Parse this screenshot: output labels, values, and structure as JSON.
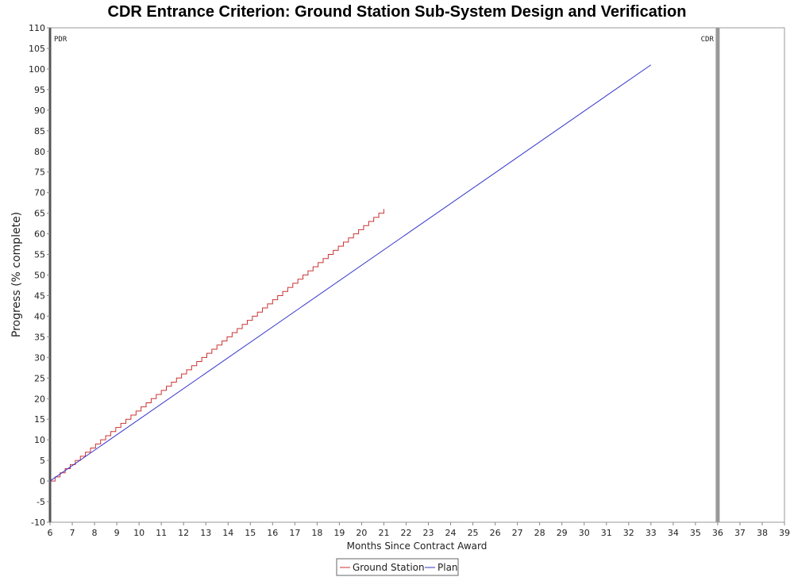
{
  "chart_data": {
    "type": "line",
    "title": "CDR Entrance Criterion: Ground Station Sub-System Design and Verification",
    "xlabel": "Months Since Contract Award",
    "ylabel": "Progress (% complete)",
    "xlim": [
      6,
      39
    ],
    "ylim": [
      -10,
      110
    ],
    "x_ticks": [
      6,
      7,
      8,
      9,
      10,
      11,
      12,
      13,
      14,
      15,
      16,
      17,
      18,
      19,
      20,
      21,
      22,
      23,
      24,
      25,
      26,
      27,
      28,
      29,
      30,
      31,
      32,
      33,
      34,
      35,
      36,
      37,
      38,
      39
    ],
    "y_ticks": [
      -10,
      -5,
      0,
      5,
      10,
      15,
      20,
      25,
      30,
      35,
      40,
      45,
      50,
      55,
      60,
      65,
      70,
      75,
      80,
      85,
      90,
      95,
      100,
      105,
      110
    ],
    "grid": false,
    "legend_position": "bottom-center",
    "markers": [
      {
        "label": "PDR",
        "x": 6,
        "color": "#555555"
      },
      {
        "label": "CDR",
        "x": 36,
        "color": "#999999"
      }
    ],
    "series": [
      {
        "name": "Ground Station",
        "color": "#cc3333",
        "style": "step",
        "x": [
          6,
          21
        ],
        "y": [
          0,
          66
        ],
        "step_size": 1
      },
      {
        "name": "Plan",
        "color": "#3333cc",
        "style": "line",
        "x": [
          6,
          33
        ],
        "y": [
          0,
          101
        ]
      }
    ]
  }
}
